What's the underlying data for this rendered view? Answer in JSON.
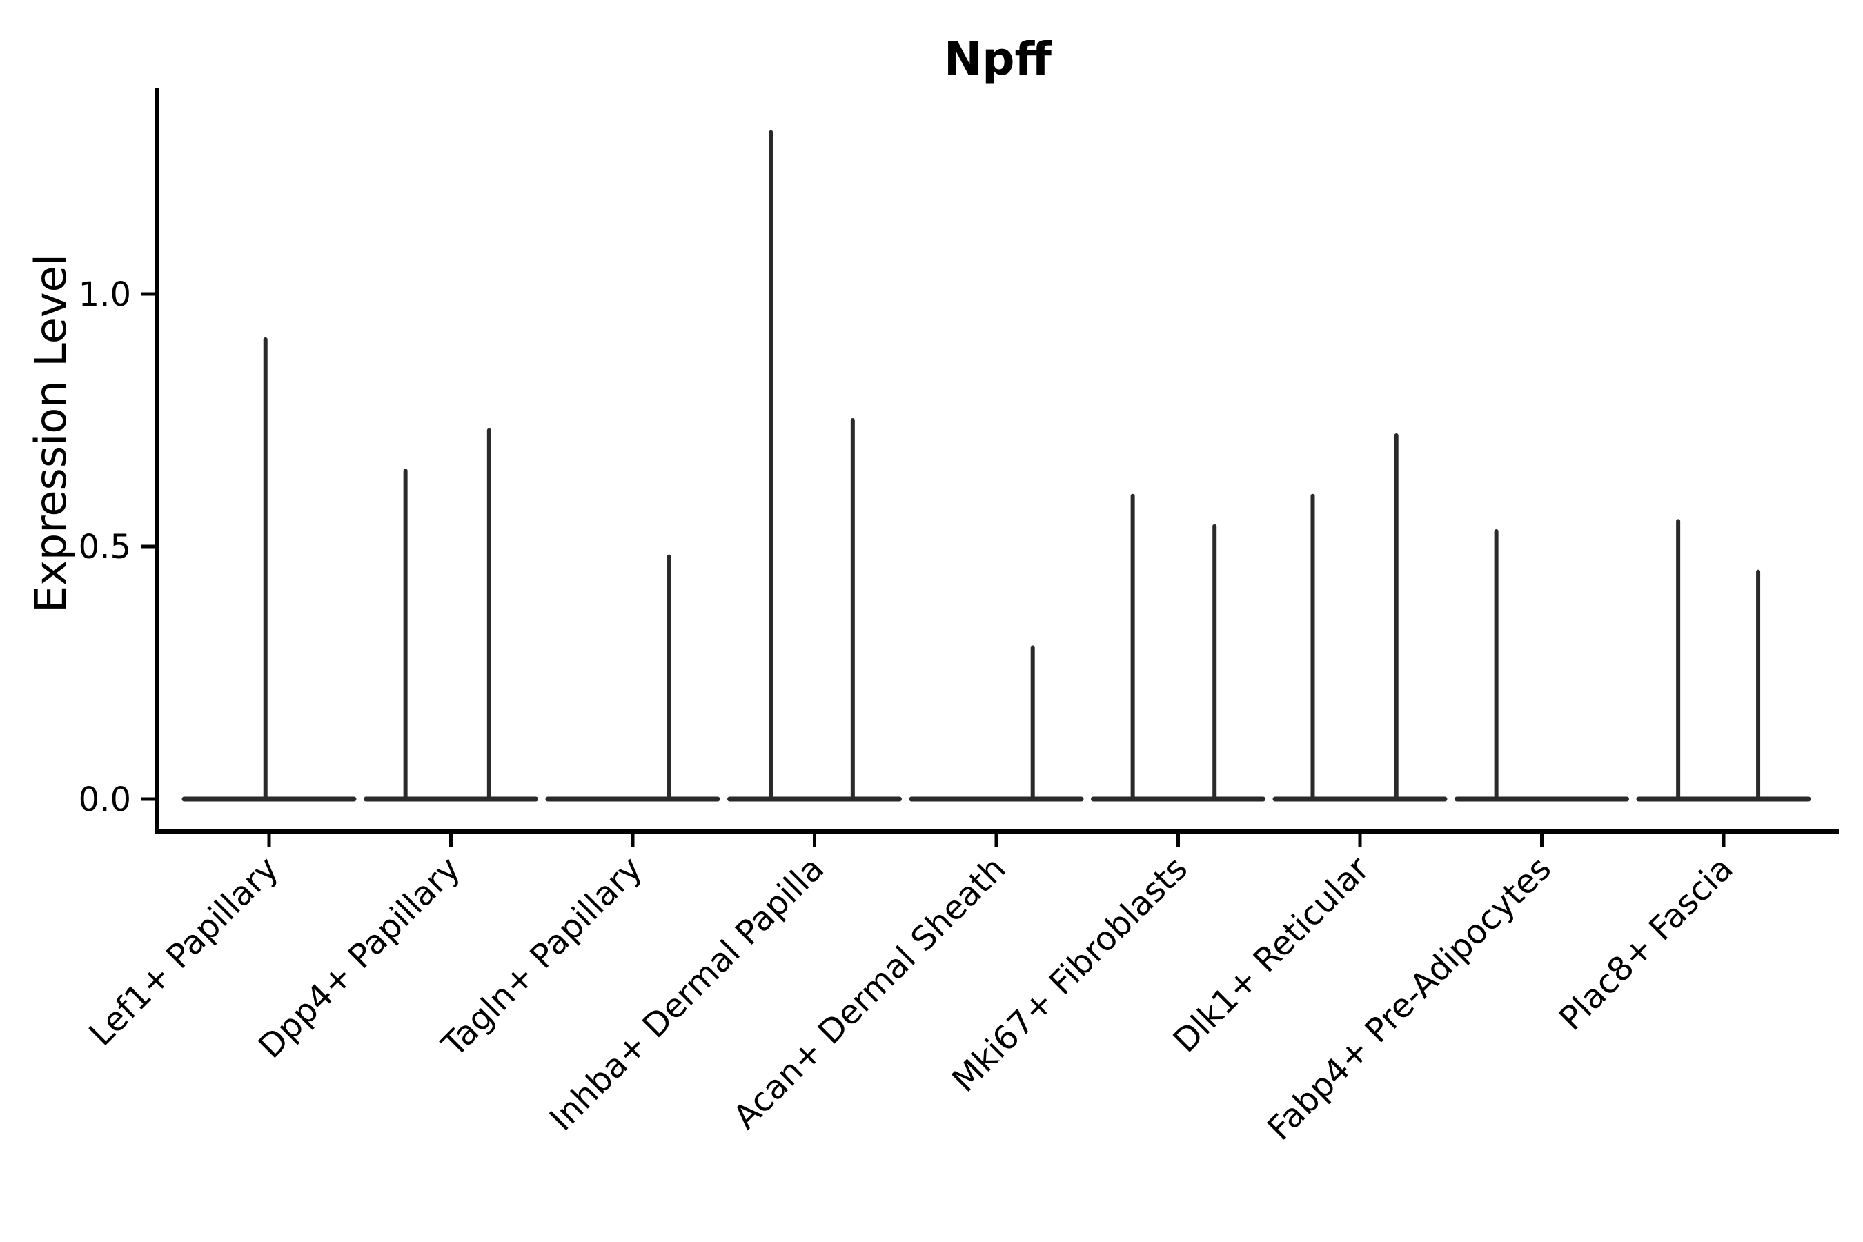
{
  "figure": {
    "title": "Npff",
    "ylabel": "Expression Level"
  },
  "chart_data": {
    "type": "violin",
    "title": "Npff",
    "subtitle": "",
    "xlabel": "",
    "ylabel": "Expression Level",
    "grid": false,
    "legend": "none",
    "ylim": [
      -0.06,
      1.41
    ],
    "yticks": [
      0.0,
      0.5,
      1.0
    ],
    "ytick_labels": [
      "0.0",
      "0.5",
      "1.0"
    ],
    "categories": [
      "Lef1+ Papillary",
      "Dpp4+ Papillary",
      "Tagln+ Papillary",
      "Inhba+ Dermal Papilla",
      "Acan+ Dermal Sheath",
      "Mki67+ Fibroblasts",
      "Dlk1+ Reticular",
      "Fabp4+ Pre-Adipocytes",
      "Plac8+ Fascia"
    ],
    "series_description": "Each violin is a flat zero-density line with thin vertical spikes; spike dx is the horizontal offset in category-width units, value is the Expression Level at the spike top",
    "series": [
      {
        "category": "Lef1+ Papillary",
        "baseline_value": 0.0,
        "spikes": [
          {
            "dx": -0.02,
            "value": 0.91
          }
        ]
      },
      {
        "category": "Dpp4+ Papillary",
        "baseline_value": 0.0,
        "spikes": [
          {
            "dx": -0.25,
            "value": 0.65
          },
          {
            "dx": 0.21,
            "value": 0.73
          }
        ]
      },
      {
        "category": "Tagln+ Papillary",
        "baseline_value": 0.0,
        "spikes": [
          {
            "dx": 0.2,
            "value": 0.48
          }
        ]
      },
      {
        "category": "Inhba+ Dermal Papilla",
        "baseline_value": 0.0,
        "spikes": [
          {
            "dx": -0.24,
            "value": 1.32
          },
          {
            "dx": 0.21,
            "value": 0.75
          }
        ]
      },
      {
        "category": "Acan+ Dermal Sheath",
        "baseline_value": 0.0,
        "spikes": [
          {
            "dx": 0.2,
            "value": 0.3
          }
        ]
      },
      {
        "category": "Mki67+ Fibroblasts",
        "baseline_value": 0.0,
        "spikes": [
          {
            "dx": -0.25,
            "value": 0.6
          },
          {
            "dx": 0.2,
            "value": 0.54
          }
        ]
      },
      {
        "category": "Dlk1+ Reticular",
        "baseline_value": 0.0,
        "spikes": [
          {
            "dx": -0.26,
            "value": 0.6
          },
          {
            "dx": 0.2,
            "value": 0.72
          }
        ]
      },
      {
        "category": "Fabp4+ Pre-Adipocytes",
        "baseline_value": 0.0,
        "spikes": [
          {
            "dx": -0.25,
            "value": 0.53
          }
        ]
      },
      {
        "category": "Plac8+ Fascia",
        "baseline_value": 0.0,
        "spikes": [
          {
            "dx": -0.25,
            "value": 0.55
          },
          {
            "dx": 0.19,
            "value": 0.45
          }
        ]
      }
    ],
    "colors": {
      "violin_stroke": "#2a2a2a",
      "axis": "#000000",
      "background": "#ffffff"
    }
  }
}
